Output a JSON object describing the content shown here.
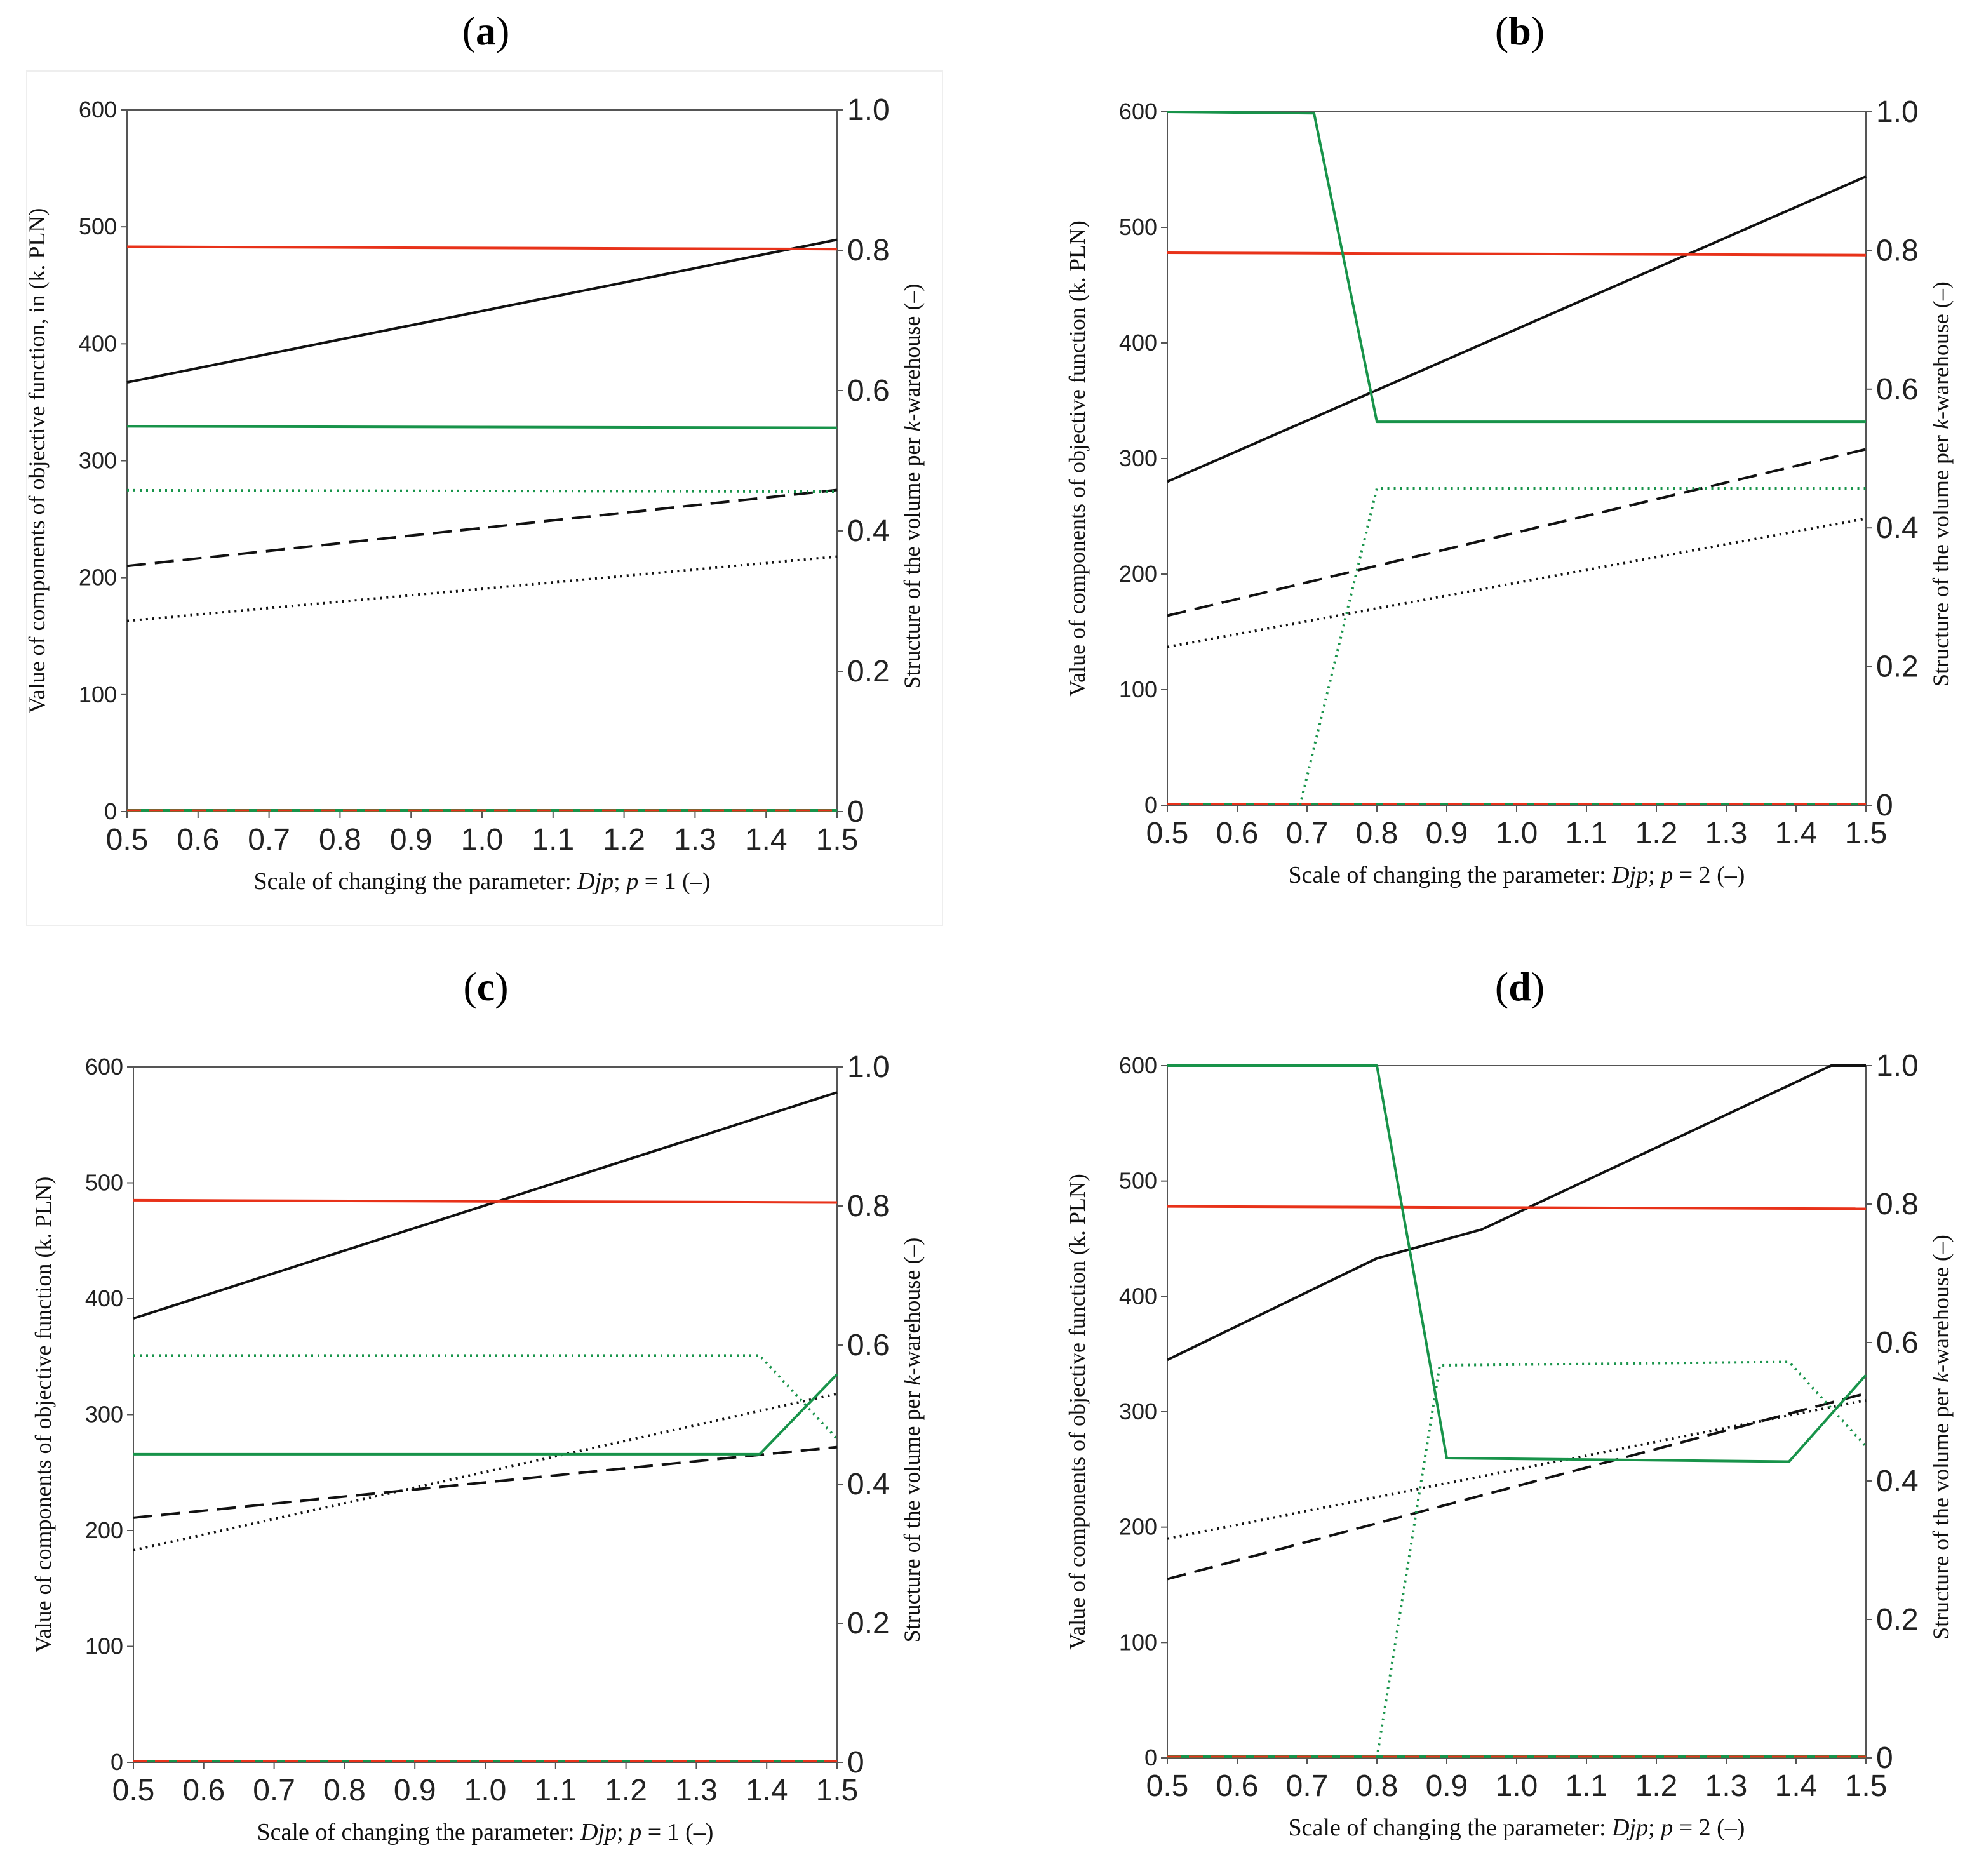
{
  "figure": {
    "colors": {
      "black": "#111111",
      "red": "#e8321a",
      "green": "#18934a",
      "axis": "#555555",
      "zero_dash": "#e8321a"
    },
    "series_styles": [
      {
        "name": "black-solid",
        "color": "black",
        "dash": "solid",
        "axis": "left"
      },
      {
        "name": "black-dashed",
        "color": "black",
        "dash": "dashed",
        "axis": "left"
      },
      {
        "name": "black-dotted",
        "color": "black",
        "dash": "dotted",
        "axis": "left"
      },
      {
        "name": "red-solid",
        "color": "red",
        "dash": "solid",
        "axis": "left"
      },
      {
        "name": "green-solid",
        "color": "green",
        "dash": "solid",
        "axis": "right"
      },
      {
        "name": "green-dotted",
        "color": "green",
        "dash": "dotted",
        "axis": "right"
      }
    ]
  },
  "chart_data": [
    {
      "id": "a",
      "label": "a",
      "type": "line",
      "xlabel_prefix": "Scale of changing the parameter: ",
      "xlabel_var": "Djp",
      "xlabel_mid": "; ",
      "xlabel_p": "p",
      "xlabel_suffix": " = 1 (–)",
      "ylabel": "Value of components of objective function, in (k. PLN)",
      "ylabel2_prefix": "Structure of the volume per ",
      "ylabel2_k": "k",
      "ylabel2_suffix": "-warehouse (–)",
      "xlim": [
        0.5,
        1.5
      ],
      "ylim": [
        0,
        600
      ],
      "y2lim": [
        0,
        1.0
      ],
      "xticks": [
        "0.5",
        "0.6",
        "0.7",
        "0.8",
        "0.9",
        "1.0",
        "1.1",
        "1.2",
        "1.3",
        "1.4",
        "1.5"
      ],
      "yticks": [
        "0",
        "100",
        "200",
        "300",
        "400",
        "500",
        "600"
      ],
      "y2ticks": [
        "0",
        "0.2",
        "0.4",
        "0.6",
        "0.8",
        "1.0"
      ],
      "series": [
        {
          "name": "black-solid",
          "x": [
            0.5,
            1.5
          ],
          "y": [
            367,
            489
          ]
        },
        {
          "name": "black-dashed",
          "x": [
            0.5,
            1.5
          ],
          "y": [
            210,
            275
          ]
        },
        {
          "name": "black-dotted",
          "x": [
            0.5,
            1.5
          ],
          "y": [
            163,
            218
          ]
        },
        {
          "name": "red-solid",
          "x": [
            0.5,
            1.5
          ],
          "y": [
            483,
            481
          ]
        },
        {
          "name": "green-solid",
          "x": [
            0.5,
            1.5
          ],
          "y": [
            0.549,
            0.547
          ]
        },
        {
          "name": "green-dotted",
          "x": [
            0.5,
            1.5
          ],
          "y": [
            0.458,
            0.456
          ]
        }
      ]
    },
    {
      "id": "b",
      "label": "b",
      "type": "line",
      "xlabel_prefix": "Scale of changing the parameter: ",
      "xlabel_var": "Djp",
      "xlabel_mid": "; ",
      "xlabel_p": "p",
      "xlabel_suffix": " = 2 (–)",
      "ylabel": "Value of components of objective function (k. PLN)",
      "ylabel2_prefix": "Structure of the volume per ",
      "ylabel2_k": "k",
      "ylabel2_suffix": "-warehouse (–)",
      "xlim": [
        0.5,
        1.5
      ],
      "ylim": [
        0,
        600
      ],
      "y2lim": [
        0,
        1.0
      ],
      "xticks": [
        "0.5",
        "0.6",
        "0.7",
        "0.8",
        "0.9",
        "1.0",
        "1.1",
        "1.2",
        "1.3",
        "1.4",
        "1.5"
      ],
      "yticks": [
        "0",
        "100",
        "200",
        "300",
        "400",
        "500",
        "600"
      ],
      "y2ticks": [
        "0",
        "0.2",
        "0.4",
        "0.6",
        "0.8",
        "1.0"
      ],
      "series": [
        {
          "name": "black-solid",
          "x": [
            0.5,
            1.5
          ],
          "y": [
            280,
            544
          ]
        },
        {
          "name": "black-dashed",
          "x": [
            0.5,
            1.5
          ],
          "y": [
            164,
            308
          ]
        },
        {
          "name": "black-dotted",
          "x": [
            0.5,
            1.5
          ],
          "y": [
            137,
            248
          ]
        },
        {
          "name": "red-solid",
          "x": [
            0.5,
            1.5
          ],
          "y": [
            478,
            476
          ]
        },
        {
          "name": "green-solid",
          "x": [
            0.5,
            0.71,
            0.8,
            1.5
          ],
          "y": [
            1.0,
            0.998,
            0.553,
            0.553
          ]
        },
        {
          "name": "green-dotted",
          "x": [
            0.69,
            0.8,
            1.5
          ],
          "y": [
            0.0,
            0.457,
            0.457
          ]
        }
      ]
    },
    {
      "id": "c",
      "label": "c",
      "type": "line",
      "xlabel_prefix": "Scale of changing the parameter: ",
      "xlabel_var": "Djp",
      "xlabel_mid": "; ",
      "xlabel_p": "p",
      "xlabel_suffix": " = 1 (–)",
      "ylabel": "Value of components of objective function (k. PLN)",
      "ylabel2_prefix": "Structure of the volume per ",
      "ylabel2_k": "k",
      "ylabel2_suffix": "-warehouse (–)",
      "xlim": [
        0.5,
        1.5
      ],
      "ylim": [
        0,
        600
      ],
      "y2lim": [
        0,
        1.0
      ],
      "xticks": [
        "0.5",
        "0.6",
        "0.7",
        "0.8",
        "0.9",
        "1.0",
        "1.1",
        "1.2",
        "1.3",
        "1.4",
        "1.5"
      ],
      "yticks": [
        "0",
        "100",
        "200",
        "300",
        "400",
        "500",
        "600"
      ],
      "y2ticks": [
        "0",
        "0.2",
        "0.4",
        "0.6",
        "0.8",
        "1.0"
      ],
      "series": [
        {
          "name": "black-solid",
          "x": [
            0.5,
            1.5
          ],
          "y": [
            383,
            578
          ]
        },
        {
          "name": "black-dashed",
          "x": [
            0.5,
            1.5
          ],
          "y": [
            211,
            272
          ]
        },
        {
          "name": "black-dotted",
          "x": [
            0.5,
            1.5
          ],
          "y": [
            183,
            318
          ]
        },
        {
          "name": "red-solid",
          "x": [
            0.5,
            1.5
          ],
          "y": [
            485,
            483
          ]
        },
        {
          "name": "green-solid",
          "x": [
            0.5,
            1.39,
            1.5
          ],
          "y": [
            0.443,
            0.443,
            0.558
          ]
        },
        {
          "name": "green-dotted",
          "x": [
            0.5,
            1.39,
            1.5
          ],
          "y": [
            0.585,
            0.585,
            0.465
          ]
        }
      ]
    },
    {
      "id": "d",
      "label": "d",
      "type": "line",
      "xlabel_prefix": "Scale of changing the parameter: ",
      "xlabel_var": "Djp",
      "xlabel_mid": "; ",
      "xlabel_p": "p",
      "xlabel_suffix": " = 2 (–)",
      "ylabel": "Value of components of objective function (k. PLN)",
      "ylabel2_prefix": "Structure of the volume per ",
      "ylabel2_k": "k",
      "ylabel2_suffix": "-warehouse (–)",
      "xlim": [
        0.5,
        1.5
      ],
      "ylim": [
        0,
        600
      ],
      "y2lim": [
        0,
        1.0
      ],
      "xticks": [
        "0.5",
        "0.6",
        "0.7",
        "0.8",
        "0.9",
        "1.0",
        "1.1",
        "1.2",
        "1.3",
        "1.4",
        "1.5"
      ],
      "yticks": [
        "0",
        "100",
        "200",
        "300",
        "400",
        "500",
        "600"
      ],
      "y2ticks": [
        "0",
        "0.2",
        "0.4",
        "0.6",
        "0.8",
        "1.0"
      ],
      "series": [
        {
          "name": "black-solid",
          "x": [
            0.5,
            0.8,
            0.95,
            1.45,
            1.5
          ],
          "y": [
            345,
            433,
            458,
            600,
            600
          ]
        },
        {
          "name": "black-dashed",
          "x": [
            0.5,
            1.5
          ],
          "y": [
            155,
            316
          ]
        },
        {
          "name": "black-dotted",
          "x": [
            0.5,
            1.5
          ],
          "y": [
            190,
            310
          ]
        },
        {
          "name": "red-solid",
          "x": [
            0.5,
            1.5
          ],
          "y": [
            478,
            476
          ]
        },
        {
          "name": "green-solid",
          "x": [
            0.5,
            0.8,
            0.9,
            1.39,
            1.5
          ],
          "y": [
            1.0,
            1.0,
            0.433,
            0.428,
            0.553
          ]
        },
        {
          "name": "green-dotted",
          "x": [
            0.8,
            0.89,
            1.39,
            1.5
          ],
          "y": [
            0.0,
            0.567,
            0.572,
            0.45
          ]
        }
      ]
    }
  ]
}
